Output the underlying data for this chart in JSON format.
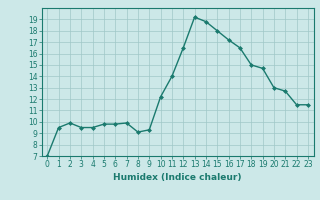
{
  "x": [
    0,
    1,
    2,
    3,
    4,
    5,
    6,
    7,
    8,
    9,
    10,
    11,
    12,
    13,
    14,
    15,
    16,
    17,
    18,
    19,
    20,
    21,
    22,
    23
  ],
  "y": [
    7.0,
    9.5,
    9.9,
    9.5,
    9.5,
    9.8,
    9.8,
    9.9,
    9.1,
    9.3,
    12.2,
    14.0,
    16.5,
    19.2,
    18.8,
    18.0,
    17.2,
    16.5,
    15.0,
    14.7,
    13.0,
    12.7,
    11.5,
    11.5
  ],
  "line_color": "#1a7a6e",
  "marker": "D",
  "markersize": 2.0,
  "linewidth": 1.0,
  "bg_color": "#cce8e8",
  "grid_color": "#a0c8c8",
  "xlabel": "Humidex (Indice chaleur)",
  "ylim": [
    7,
    20
  ],
  "xlim": [
    -0.5,
    23.5
  ],
  "yticks": [
    7,
    8,
    9,
    10,
    11,
    12,
    13,
    14,
    15,
    16,
    17,
    18,
    19
  ],
  "xticks": [
    0,
    1,
    2,
    3,
    4,
    5,
    6,
    7,
    8,
    9,
    10,
    11,
    12,
    13,
    14,
    15,
    16,
    17,
    18,
    19,
    20,
    21,
    22,
    23
  ],
  "tick_color": "#1a7a6e",
  "label_color": "#1a7a6e",
  "label_fontsize": 6.5,
  "tick_fontsize": 5.5
}
